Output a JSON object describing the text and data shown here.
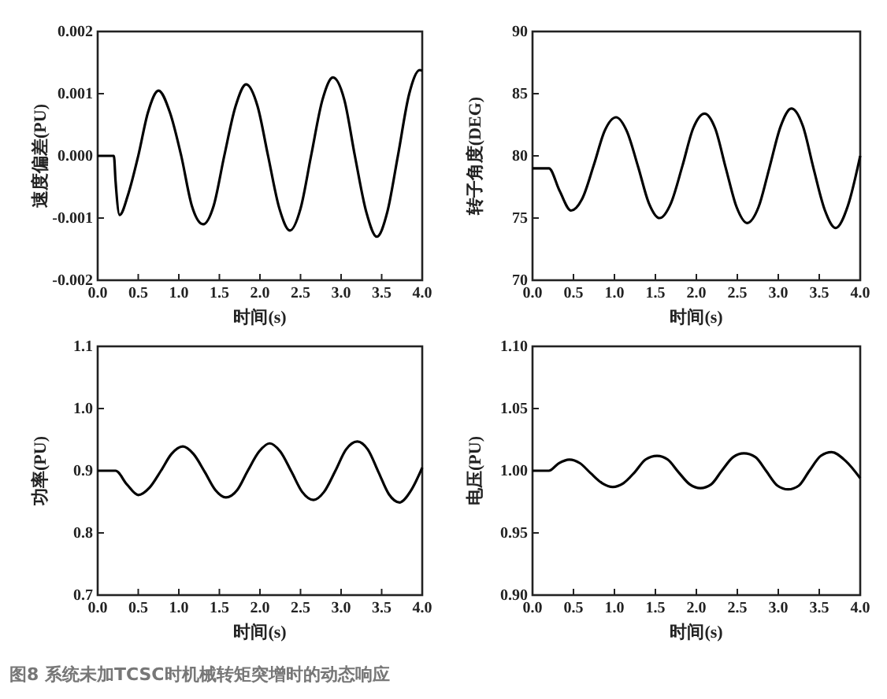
{
  "chart_data": [
    {
      "type": "line",
      "xlabel": "时间(s)",
      "ylabel": "速度偏差(PU)",
      "xlim": [
        0,
        4
      ],
      "ylim": [
        -0.002,
        0.002
      ],
      "xticks": [
        {
          "value": 0,
          "label": "0.0"
        },
        {
          "value": 0.5,
          "label": "0.5"
        },
        {
          "value": 1,
          "label": "1.0"
        },
        {
          "value": 1.5,
          "label": "1.5"
        },
        {
          "value": 2,
          "label": "2.0"
        },
        {
          "value": 2.5,
          "label": "2.5"
        },
        {
          "value": 3,
          "label": "3.0"
        },
        {
          "value": 3.5,
          "label": "3.5"
        },
        {
          "value": 4,
          "label": "4.0"
        }
      ],
      "yticks": [
        -0.002,
        -0.001,
        {
          "value": 0,
          "label": "0.000"
        },
        0.001,
        0.002
      ],
      "series": [
        {
          "color": "#000000",
          "x": [
            0,
            0.2,
            0.22,
            0.27,
            0.38,
            0.5,
            0.62,
            0.75,
            0.89,
            1.03,
            1.16,
            1.3,
            1.43,
            1.56,
            1.7,
            1.83,
            1.97,
            2.1,
            2.24,
            2.37,
            2.5,
            2.63,
            2.77,
            2.9,
            3.04,
            3.17,
            3.31,
            3.44,
            3.57,
            3.7,
            3.84,
            3.97,
            4.0
          ],
          "values": [
            0,
            0,
            -0.0004,
            -0.00095,
            -0.0006,
            0,
            0.0007,
            0.00105,
            0.0007,
            0,
            -0.0008,
            -0.0011,
            -0.0008,
            0,
            0.0008,
            0.00115,
            0.0008,
            0,
            -0.00085,
            -0.0012,
            -0.00085,
            0,
            0.0009,
            0.00126,
            0.0009,
            0,
            -0.0009,
            -0.0013,
            -0.0009,
            0,
            0.001,
            0.00138,
            0.00137
          ]
        }
      ]
    },
    {
      "type": "line",
      "xlabel": "时间(s)",
      "ylabel": "转子角度(DEG)",
      "xlim": [
        0,
        4
      ],
      "ylim": [
        70,
        90
      ],
      "xticks": [
        {
          "value": 0,
          "label": "0.0"
        },
        {
          "value": 0.5,
          "label": "0.5"
        },
        {
          "value": 1,
          "label": "1.0"
        },
        {
          "value": 1.5,
          "label": "1.5"
        },
        {
          "value": 2,
          "label": "2.0"
        },
        {
          "value": 2.5,
          "label": "2.5"
        },
        {
          "value": 3,
          "label": "3.0"
        },
        {
          "value": 3.5,
          "label": "3.5"
        },
        {
          "value": 4,
          "label": "4.0"
        }
      ],
      "yticks": [
        70,
        75,
        80,
        85,
        90
      ],
      "series": [
        {
          "color": "#000000",
          "x": [
            0,
            0.2,
            0.33,
            0.47,
            0.61,
            0.75,
            0.88,
            1.02,
            1.15,
            1.29,
            1.42,
            1.55,
            1.69,
            1.83,
            1.96,
            2.1,
            2.23,
            2.36,
            2.49,
            2.62,
            2.76,
            2.89,
            3.03,
            3.16,
            3.3,
            3.43,
            3.57,
            3.7,
            3.85,
            4.0
          ],
          "values": [
            79,
            79,
            77.2,
            75.6,
            76.6,
            79.3,
            82.0,
            83.1,
            82.0,
            79.1,
            76.2,
            75.0,
            76.2,
            79.2,
            82.2,
            83.4,
            82.2,
            79.0,
            75.9,
            74.6,
            75.9,
            79.0,
            82.4,
            83.8,
            82.4,
            79.0,
            75.6,
            74.2,
            76.0,
            80.0
          ]
        }
      ]
    },
    {
      "type": "line",
      "xlabel": "时间(s)",
      "ylabel": "功率(PU)",
      "xlim": [
        0,
        4
      ],
      "ylim": [
        0.7,
        1.1
      ],
      "xticks": [
        {
          "value": 0,
          "label": "0.0"
        },
        {
          "value": 0.5,
          "label": "0.5"
        },
        {
          "value": 1,
          "label": "1.0"
        },
        {
          "value": 1.5,
          "label": "1.5"
        },
        {
          "value": 2,
          "label": "2.0"
        },
        {
          "value": 2.5,
          "label": "2.5"
        },
        {
          "value": 3,
          "label": "3.0"
        },
        {
          "value": 3.5,
          "label": "3.5"
        },
        {
          "value": 4,
          "label": "4.0"
        }
      ],
      "yticks": [
        0.7,
        0.8,
        0.9,
        {
          "value": 1,
          "label": "1.0"
        },
        1.1
      ],
      "series": [
        {
          "color": "#000000",
          "x": [
            0,
            0.22,
            0.36,
            0.5,
            0.64,
            0.78,
            0.91,
            1.05,
            1.18,
            1.32,
            1.45,
            1.58,
            1.72,
            1.85,
            1.99,
            2.12,
            2.25,
            2.39,
            2.52,
            2.66,
            2.79,
            2.93,
            3.06,
            3.2,
            3.33,
            3.46,
            3.59,
            3.72,
            3.86,
            4.0
          ],
          "values": [
            0.9,
            0.9,
            0.878,
            0.861,
            0.873,
            0.9,
            0.927,
            0.939,
            0.927,
            0.898,
            0.869,
            0.857,
            0.869,
            0.9,
            0.931,
            0.944,
            0.931,
            0.898,
            0.866,
            0.853,
            0.866,
            0.9,
            0.934,
            0.947,
            0.934,
            0.898,
            0.862,
            0.849,
            0.868,
            0.905
          ]
        }
      ]
    },
    {
      "type": "line",
      "xlabel": "时间(s)",
      "ylabel": "电压(PU)",
      "xlim": [
        0,
        4
      ],
      "ylim": [
        0.9,
        1.1
      ],
      "xticks": [
        {
          "value": 0,
          "label": "0.0"
        },
        {
          "value": 0.5,
          "label": "0.5"
        },
        {
          "value": 1,
          "label": "1.0"
        },
        {
          "value": 1.5,
          "label": "1.5"
        },
        {
          "value": 2,
          "label": "2.0"
        },
        {
          "value": 2.5,
          "label": "2.5"
        },
        {
          "value": 3,
          "label": "3.0"
        },
        {
          "value": 3.5,
          "label": "3.5"
        },
        {
          "value": 4,
          "label": "4.0"
        }
      ],
      "yticks": [
        {
          "value": 0.9,
          "label": "0.90"
        },
        0.95,
        {
          "value": 1,
          "label": "1.00"
        },
        1.05,
        {
          "value": 1.1,
          "label": "1.10"
        }
      ],
      "series": [
        {
          "color": "#000000",
          "x": [
            0,
            0.2,
            0.32,
            0.45,
            0.58,
            0.71,
            0.85,
            0.98,
            1.11,
            1.25,
            1.38,
            1.52,
            1.65,
            1.78,
            1.92,
            2.05,
            2.18,
            2.31,
            2.45,
            2.58,
            2.72,
            2.85,
            2.99,
            3.12,
            3.25,
            3.38,
            3.52,
            3.65,
            3.82,
            4.0
          ],
          "values": [
            1.0,
            1.0,
            1.006,
            1.009,
            1.006,
            0.998,
            0.99,
            0.987,
            0.99,
            0.999,
            1.009,
            1.012,
            1.009,
            0.999,
            0.989,
            0.986,
            0.989,
            1.0,
            1.011,
            1.014,
            1.011,
            1.0,
            0.988,
            0.985,
            0.988,
            1.0,
            1.012,
            1.015,
            1.008,
            0.994
          ]
        }
      ],
      "annotations": [
        "图8  系统未加TCSC时机械转矩突增时的动态响应"
      ]
    }
  ]
}
